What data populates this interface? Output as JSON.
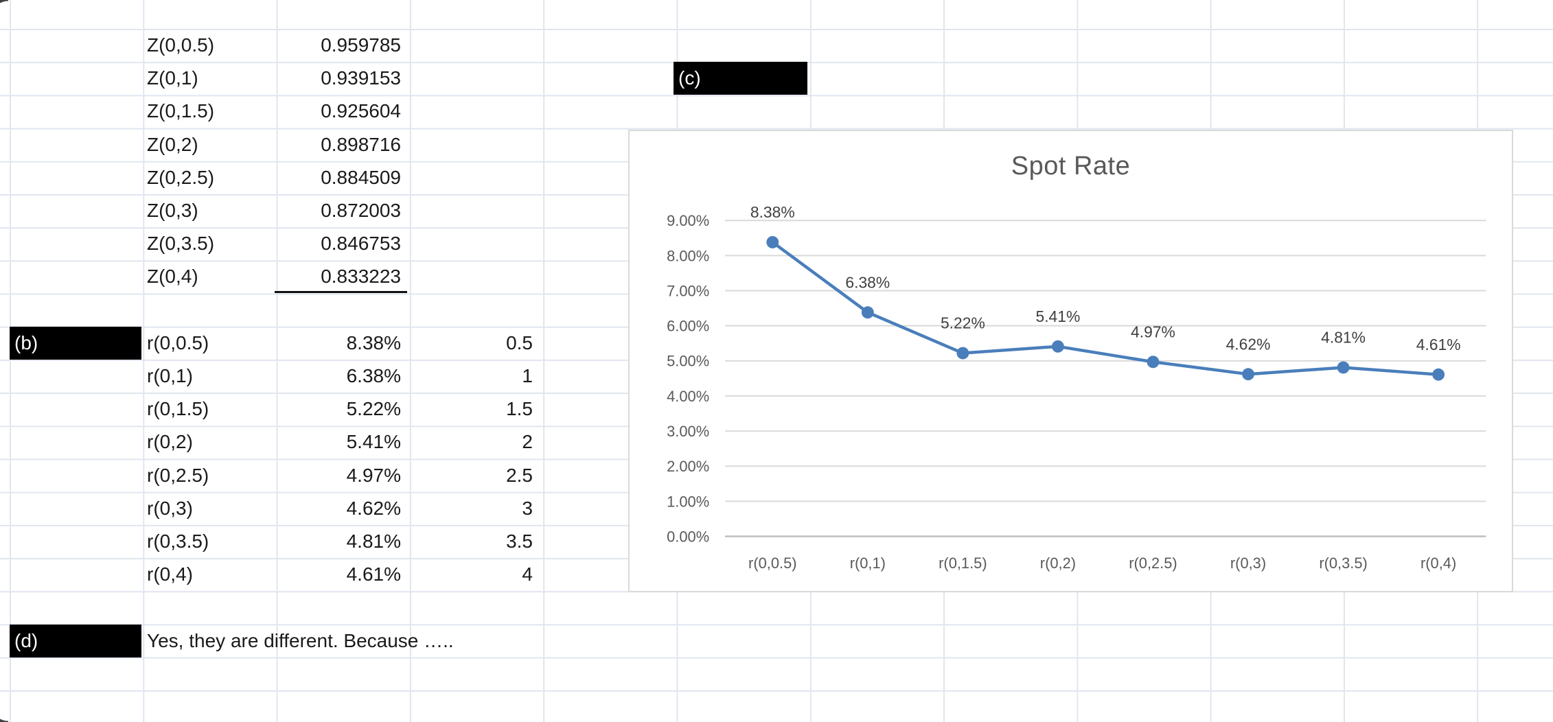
{
  "sheet": {
    "z_table": {
      "rows": [
        {
          "label": "Z(0,0.5)",
          "value": "0.959785"
        },
        {
          "label": "Z(0,1)",
          "value": "0.939153"
        },
        {
          "label": "Z(0,1.5)",
          "value": "0.925604"
        },
        {
          "label": "Z(0,2)",
          "value": "0.898716"
        },
        {
          "label": "Z(0,2.5)",
          "value": "0.884509"
        },
        {
          "label": "Z(0,3)",
          "value": "0.872003"
        },
        {
          "label": "Z(0,3.5)",
          "value": "0.846753"
        },
        {
          "label": "Z(0,4)",
          "value": "0.833223"
        }
      ]
    },
    "b_marker": "(b)",
    "c_marker": "(c)",
    "d_marker": "(d)",
    "r_table": {
      "rows": [
        {
          "label": "r(0,0.5)",
          "rate": "8.38%",
          "maturity": "0.5"
        },
        {
          "label": "r(0,1)",
          "rate": "6.38%",
          "maturity": "1"
        },
        {
          "label": "r(0,1.5)",
          "rate": "5.22%",
          "maturity": "1.5"
        },
        {
          "label": "r(0,2)",
          "rate": "5.41%",
          "maturity": "2"
        },
        {
          "label": "r(0,2.5)",
          "rate": "4.97%",
          "maturity": "2.5"
        },
        {
          "label": "r(0,3)",
          "rate": "4.62%",
          "maturity": "3"
        },
        {
          "label": "r(0,3.5)",
          "rate": "4.81%",
          "maturity": "3.5"
        },
        {
          "label": "r(0,4)",
          "rate": "4.61%",
          "maturity": "4"
        }
      ]
    },
    "d_text": "Yes, they are different. Because ….."
  },
  "chart_data": {
    "type": "line",
    "title": "Spot Rate",
    "categories": [
      "r(0,0.5)",
      "r(0,1)",
      "r(0,1.5)",
      "r(0,2)",
      "r(0,2.5)",
      "r(0,3)",
      "r(0,3.5)",
      "r(0,4)"
    ],
    "values": [
      8.38,
      6.38,
      5.22,
      5.41,
      4.97,
      4.62,
      4.81,
      4.61
    ],
    "data_labels": [
      "8.38%",
      "6.38%",
      "5.22%",
      "5.41%",
      "4.97%",
      "4.62%",
      "4.81%",
      "4.61%"
    ],
    "y_tick_labels": [
      "9.00%",
      "8.00%",
      "7.00%",
      "6.00%",
      "5.00%",
      "4.00%",
      "3.00%",
      "2.00%",
      "1.00%",
      "0.00%"
    ],
    "ylim": [
      0,
      9
    ],
    "xlabel": "",
    "ylabel": "",
    "grid": true,
    "legend": "none",
    "line_color": "#4a7ebb",
    "gridline_color": "#d9d9d9",
    "axis_color": "#bfbfbf",
    "label_color": "#404040",
    "tick_color": "#595959",
    "title_color": "#595959"
  }
}
